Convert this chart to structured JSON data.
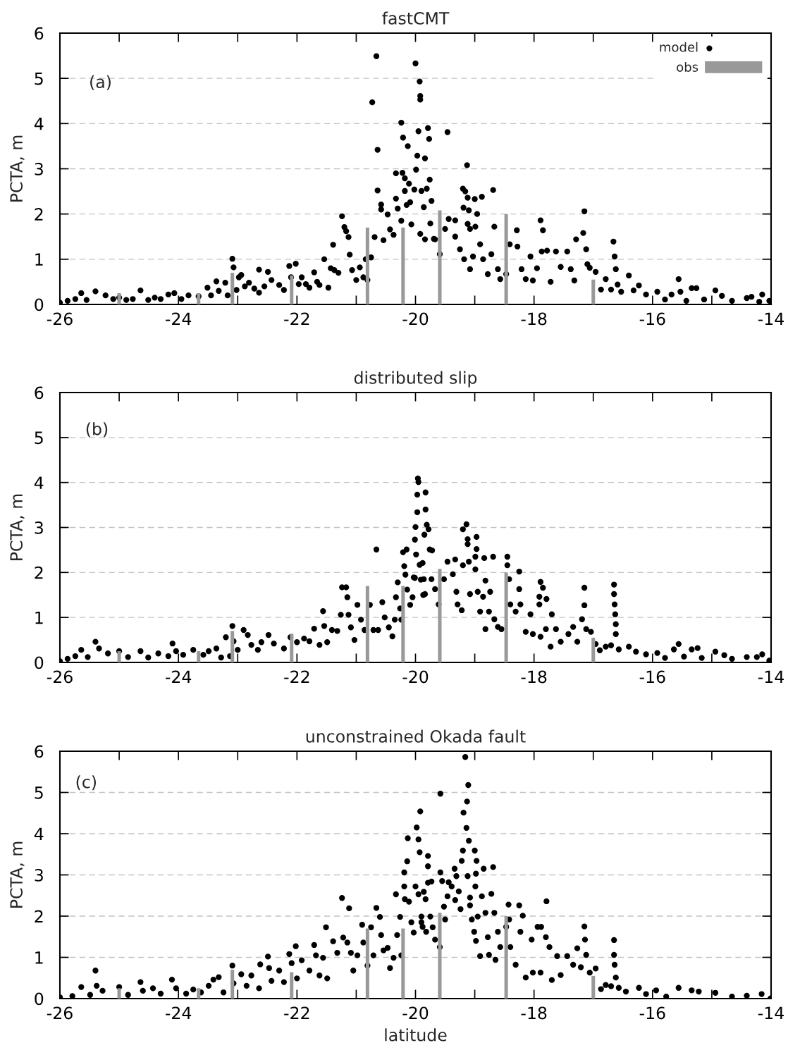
{
  "chart_data": [
    {
      "type": "scatter",
      "title": "fastCMT",
      "ylabel": "PCTA, m",
      "annotations": [
        "(a)"
      ],
      "xlim": [
        -26,
        -14
      ],
      "xticks": [
        -26,
        {
          "value": -25,
          "label": null
        },
        -24,
        {
          "value": -23,
          "label": null
        },
        -22,
        {
          "value": -21,
          "label": null
        },
        -20,
        {
          "value": -19,
          "label": null
        },
        -18,
        {
          "value": -17,
          "label": null
        },
        -16,
        {
          "value": -15,
          "label": null
        },
        -14
      ],
      "ylim": [
        0,
        6
      ],
      "yticks": [
        0,
        1,
        2,
        3,
        4,
        5,
        6
      ],
      "grid": "y",
      "legend": "top right",
      "marker": "circle",
      "series": [
        {
          "name": "model",
          "color": "#000000",
          "x": [
            -26.0,
            -25.87,
            -25.74,
            -25.64,
            -25.55,
            -25.4,
            -25.23,
            -25.1,
            -25.0,
            -24.88,
            -24.77,
            -24.64,
            -24.51,
            -24.4,
            -24.3,
            -24.17,
            -24.07,
            -23.95,
            -23.83,
            -23.66,
            -23.51,
            -23.45,
            -23.36,
            -23.32,
            -23.21,
            -23.17,
            -23.09,
            -23.07,
            -23.02,
            -22.98,
            -22.94,
            -22.88,
            -22.81,
            -22.72,
            -22.64,
            -22.64,
            -22.55,
            -22.49,
            -22.43,
            -22.3,
            -22.22,
            -22.13,
            -22.1,
            -22.02,
            -21.97,
            -21.92,
            -21.85,
            -21.79,
            -21.71,
            -21.66,
            -21.62,
            -21.54,
            -21.47,
            -21.43,
            -21.39,
            -21.37,
            -21.3,
            -21.24,
            -21.2,
            -21.17,
            -21.13,
            -21.11,
            -21.07,
            -21.0,
            -20.94,
            -20.88,
            -20.84,
            -20.81,
            -20.75,
            -20.73,
            -20.69,
            -20.66,
            -20.64,
            -20.64,
            -20.58,
            -20.58,
            -20.54,
            -20.47,
            -20.43,
            -20.37,
            -20.33,
            -20.33,
            -20.3,
            -20.24,
            -20.24,
            -20.22,
            -20.21,
            -20.18,
            -20.18,
            -20.15,
            -20.13,
            -20.11,
            -20.09,
            -20.07,
            -20.02,
            -20.0,
            -19.99,
            -19.97,
            -19.95,
            -19.93,
            -19.92,
            -19.92,
            -19.9,
            -19.86,
            -19.84,
            -19.81,
            -19.79,
            -19.77,
            -19.76,
            -19.73,
            -19.75,
            -19.69,
            -19.92,
            -19.84,
            -19.67,
            -19.59,
            -19.5,
            -19.46,
            -19.44,
            -19.33,
            -19.33,
            -19.25,
            -19.18,
            -19.2,
            -19.16,
            -19.13,
            -19.12,
            -19.19,
            -19.1,
            -19.12,
            -19.08,
            -19.08,
            -19.03,
            -19.0,
            -18.96,
            -18.99,
            -18.91,
            -18.88,
            -18.86,
            -18.78,
            -18.72,
            -18.69,
            -18.67,
            -18.61,
            -18.57,
            -18.47,
            -18.41,
            -18.29,
            -18.28,
            -18.21,
            -18.14,
            -18.06,
            -18.02,
            -17.95,
            -17.89,
            -17.85,
            -17.87,
            -17.78,
            -17.72,
            -17.63,
            -17.55,
            -17.44,
            -17.38,
            -17.32,
            -17.29,
            -17.17,
            -17.15,
            -17.12,
            -17.1,
            -17.06,
            -16.96,
            -16.87,
            -16.79,
            -16.7,
            -16.66,
            -16.64,
            -16.62,
            -16.59,
            -16.53,
            -16.4,
            -16.32,
            -16.23,
            -16.11,
            -15.92,
            -15.79,
            -15.68,
            -15.56,
            -15.53,
            -15.43,
            -15.34,
            -15.26,
            -15.13,
            -14.94,
            -14.83,
            -14.66,
            -14.41,
            -14.33,
            -14.2,
            -14.15,
            -14.03
          ],
          "values": [
            0.04,
            0.08,
            0.12,
            0.25,
            0.1,
            0.29,
            0.2,
            0.12,
            0.15,
            0.1,
            0.12,
            0.31,
            0.1,
            0.15,
            0.12,
            0.22,
            0.25,
            0.12,
            0.2,
            0.18,
            0.37,
            0.2,
            0.51,
            0.3,
            0.48,
            0.2,
            1.01,
            0.82,
            0.32,
            0.6,
            0.65,
            0.4,
            0.48,
            0.35,
            0.77,
            0.26,
            0.4,
            0.72,
            0.54,
            0.43,
            0.32,
            0.85,
            0.6,
            0.9,
            0.45,
            0.6,
            0.45,
            0.37,
            0.71,
            0.5,
            0.43,
            1.0,
            0.37,
            0.8,
            1.32,
            0.76,
            0.7,
            1.95,
            1.71,
            1.62,
            1.49,
            1.1,
            0.76,
            0.54,
            0.82,
            0.6,
            1.0,
            0.54,
            1.04,
            4.47,
            1.49,
            5.49,
            3.42,
            2.52,
            2.21,
            2.1,
            1.42,
            1.99,
            1.66,
            1.54,
            2.34,
            2.9,
            2.12,
            1.85,
            4.02,
            2.91,
            3.69,
            2.79,
            2.51,
            2.2,
            3.5,
            2.67,
            2.26,
            1.77,
            2.54,
            5.33,
            2.98,
            3.29,
            3.83,
            4.93,
            4.61,
            4.53,
            2.51,
            2.15,
            3.23,
            2.56,
            3.9,
            3.66,
            2.76,
            2.29,
            1.79,
            1.45,
            1.56,
            1.44,
            1.44,
            1.11,
            1.67,
            3.81,
            1.89,
            1.86,
            1.5,
            1.22,
            1.0,
            2.56,
            2.5,
            3.08,
            2.36,
            2.14,
            2.08,
            1.78,
            1.67,
            0.78,
            1.06,
            2.33,
            2.0,
            1.72,
            1.33,
            2.38,
            1.0,
            0.67,
            1.11,
            2.53,
            1.72,
            0.78,
            0.56,
            0.67,
            1.33,
            1.64,
            1.28,
            0.78,
            0.56,
            1.06,
            0.53,
            0.8,
            1.86,
            1.64,
            1.17,
            1.19,
            0.5,
            1.17,
            0.83,
            1.17,
            0.78,
            0.53,
            1.44,
            1.58,
            2.06,
            1.22,
            0.89,
            0.81,
            0.72,
            0.33,
            0.56,
            0.33,
            1.39,
            1.06,
            0.78,
            0.44,
            0.28,
            0.64,
            0.31,
            0.42,
            0.22,
            0.28,
            0.11,
            0.22,
            0.56,
            0.28,
            0.08,
            0.36,
            0.36,
            0.11,
            0.31,
            0.19,
            0.08,
            0.14,
            0.17,
            0.06,
            0.22,
            0.08
          ]
        },
        {
          "name": "obs",
          "type": "bar",
          "color": "#999999",
          "x": [
            -25.0,
            -23.66,
            -23.09,
            -22.09,
            -20.81,
            -20.21,
            -19.59,
            -18.47,
            -17.0
          ],
          "values": [
            0.25,
            0.25,
            0.7,
            0.64,
            1.7,
            1.7,
            2.08,
            2.0,
            0.55
          ]
        }
      ]
    },
    {
      "type": "scatter",
      "title": "distributed slip",
      "ylabel": "PCTA, m",
      "annotations": [
        "(b)"
      ],
      "xlim": [
        -26,
        -14
      ],
      "xticks": [
        -26,
        {
          "value": -25,
          "label": null
        },
        -24,
        {
          "value": -23,
          "label": null
        },
        -22,
        {
          "value": -21,
          "label": null
        },
        -20,
        {
          "value": -19,
          "label": null
        },
        -18,
        {
          "value": -17,
          "label": null
        },
        -16,
        {
          "value": -15,
          "label": null
        },
        -14
      ],
      "ylim": [
        0,
        6
      ],
      "yticks": [
        0,
        1,
        2,
        3,
        4,
        5,
        6
      ],
      "grid": "y",
      "marker": "circle",
      "series": [
        {
          "color": "#000000",
          "x": [
            -26.0,
            -25.87,
            -25.74,
            -25.64,
            -25.53,
            -25.4,
            -25.34,
            -25.19,
            -25.0,
            -24.85,
            -24.64,
            -24.51,
            -24.34,
            -24.17,
            -24.1,
            -24.04,
            -23.92,
            -23.75,
            -23.58,
            -23.49,
            -23.36,
            -23.28,
            -23.2,
            -23.13,
            -23.09,
            -23.07,
            -23.0,
            -22.9,
            -22.83,
            -22.77,
            -22.66,
            -22.6,
            -22.48,
            -22.39,
            -22.22,
            -22.11,
            -22.0,
            -21.88,
            -21.79,
            -21.71,
            -21.62,
            -21.56,
            -21.54,
            -21.49,
            -21.41,
            -21.32,
            -21.26,
            -21.24,
            -21.17,
            -21.15,
            -21.13,
            -21.09,
            -21.03,
            -20.98,
            -20.92,
            -20.86,
            -20.77,
            -20.71,
            -20.66,
            -20.63,
            -20.56,
            -20.52,
            -20.45,
            -20.39,
            -20.35,
            -20.33,
            -20.3,
            -20.26,
            -20.24,
            -20.21,
            -20.19,
            -20.17,
            -20.15,
            -20.14,
            -20.09,
            -20.05,
            -20.03,
            -20.01,
            -20.0,
            -19.99,
            -19.97,
            -19.97,
            -19.96,
            -19.95,
            -19.93,
            -19.91,
            -19.87,
            -19.83,
            -19.83,
            -19.81,
            -19.85,
            -19.76,
            -19.78,
            -19.72,
            -19.88,
            -20.01,
            -19.86,
            -19.84,
            -19.73,
            -19.67,
            -19.61,
            -19.52,
            -19.46,
            -19.37,
            -19.33,
            -19.31,
            -19.29,
            -19.22,
            -19.2,
            -19.2,
            -19.14,
            -19.12,
            -19.12,
            -19.1,
            -19.08,
            -18.99,
            -18.97,
            -18.97,
            -18.99,
            -18.95,
            -18.91,
            -18.86,
            -18.84,
            -18.82,
            -18.82,
            -18.76,
            -18.74,
            -18.69,
            -18.67,
            -18.61,
            -18.55,
            -18.45,
            -18.45,
            -18.42,
            -18.4,
            -18.31,
            -18.25,
            -18.25,
            -18.23,
            -18.14,
            -18.06,
            -18.02,
            -17.91,
            -17.89,
            -17.85,
            -17.79,
            -17.91,
            -17.89,
            -17.8,
            -17.72,
            -17.7,
            -17.63,
            -17.55,
            -17.42,
            -17.34,
            -17.27,
            -17.19,
            -17.15,
            -17.15,
            -17.12,
            -17.04,
            -16.96,
            -16.89,
            -16.79,
            -16.7,
            -16.65,
            -16.65,
            -16.64,
            -16.63,
            -16.62,
            -16.62,
            -16.57,
            -16.4,
            -16.28,
            -16.11,
            -15.92,
            -15.79,
            -15.64,
            -15.56,
            -15.47,
            -15.34,
            -15.24,
            -15.17,
            -14.94,
            -14.79,
            -14.66,
            -14.41,
            -14.24,
            -14.15,
            -14.03
          ],
          "values": [
            0.03,
            0.08,
            0.14,
            0.28,
            0.12,
            0.46,
            0.31,
            0.2,
            0.25,
            0.12,
            0.25,
            0.11,
            0.2,
            0.14,
            0.42,
            0.25,
            0.17,
            0.28,
            0.17,
            0.25,
            0.31,
            0.11,
            0.56,
            0.14,
            0.81,
            0.47,
            0.28,
            0.72,
            0.61,
            0.39,
            0.28,
            0.45,
            0.61,
            0.42,
            0.31,
            0.56,
            0.45,
            0.53,
            0.47,
            0.75,
            0.39,
            1.14,
            0.81,
            0.45,
            0.72,
            0.7,
            1.06,
            1.67,
            1.67,
            1.45,
            1.06,
            0.78,
            0.5,
            1.28,
            0.95,
            0.72,
            1.28,
            0.72,
            2.51,
            0.72,
            1.34,
            1.0,
            0.78,
            0.58,
            0.95,
            1.45,
            1.78,
            1.2,
            0.95,
            2.45,
            2.14,
            1.95,
            2.51,
            1.62,
            1.28,
            1.45,
            1.89,
            2.73,
            3.01,
            2.4,
            3.34,
            3.73,
            4.09,
            4.01,
            2.17,
            1.84,
            1.5,
            3.78,
            3.4,
            3.06,
            2.84,
            2.51,
            2.96,
            2.49,
            2.21,
            1.88,
            1.85,
            1.52,
            1.85,
            1.63,
            1.29,
            1.85,
            2.24,
            1.96,
            2.29,
            1.57,
            1.29,
            1.16,
            2.16,
            2.96,
            3.07,
            2.74,
            2.63,
            2.24,
            1.52,
            2.35,
            2.79,
            2.52,
            2.07,
            1.57,
            1.13,
            1.46,
            2.32,
            1.82,
            0.74,
            1.13,
            1.57,
            2.35,
            0.96,
            0.79,
            0.74,
            2.35,
            2.16,
            1.85,
            1.29,
            1.13,
            2.02,
            1.63,
            1.29,
            0.68,
            1.07,
            0.63,
            1.46,
            1.79,
            1.66,
            1.41,
            1.29,
            0.57,
            0.74,
            0.35,
            1.07,
            0.74,
            0.46,
            0.63,
            0.79,
            0.46,
            0.96,
            1.27,
            1.66,
            0.74,
            0.68,
            0.41,
            0.27,
            0.35,
            0.38,
            1.73,
            1.52,
            1.29,
            1.07,
            0.85,
            0.63,
            0.29,
            0.35,
            0.24,
            0.18,
            0.21,
            0.1,
            0.29,
            0.41,
            0.13,
            0.29,
            0.32,
            0.1,
            0.24,
            0.16,
            0.08,
            0.12,
            0.12,
            0.18,
            0.04
          ]
        },
        {
          "type": "bar",
          "color": "#999999",
          "x": [
            -25.0,
            -23.66,
            -23.09,
            -22.09,
            -20.81,
            -20.21,
            -19.59,
            -18.47,
            -17.0
          ],
          "values": [
            0.25,
            0.25,
            0.7,
            0.64,
            1.7,
            1.7,
            2.08,
            2.0,
            0.55
          ]
        }
      ]
    },
    {
      "type": "scatter",
      "title": "unconstrained Okada fault",
      "xlabel": "latitude",
      "ylabel": "PCTA, m",
      "annotations": [
        "(c)"
      ],
      "xlim": [
        -26,
        -14
      ],
      "xticks": [
        -26,
        {
          "value": -25,
          "label": null
        },
        -24,
        {
          "value": -23,
          "label": null
        },
        -22,
        {
          "value": -21,
          "label": null
        },
        -20,
        {
          "value": -19,
          "label": null
        },
        -18,
        {
          "value": -17,
          "label": null
        },
        -16,
        {
          "value": -15,
          "label": null
        },
        -14
      ],
      "ylim": [
        0,
        6
      ],
      "yticks": [
        0,
        1,
        2,
        3,
        4,
        5,
        6
      ],
      "grid": "y",
      "marker": "circle",
      "series": [
        {
          "color": "#000000",
          "x": [
            -26.0,
            -25.79,
            -25.64,
            -25.49,
            -25.4,
            -25.38,
            -25.28,
            -25.0,
            -24.85,
            -24.64,
            -24.6,
            -24.43,
            -24.3,
            -24.11,
            -24.04,
            -23.87,
            -23.75,
            -23.62,
            -23.49,
            -23.41,
            -23.32,
            -23.24,
            -23.09,
            -23.07,
            -22.94,
            -22.85,
            -22.77,
            -22.64,
            -22.62,
            -22.49,
            -22.47,
            -22.43,
            -22.3,
            -22.22,
            -22.13,
            -22.09,
            -22.02,
            -22.0,
            -21.92,
            -21.79,
            -21.71,
            -21.68,
            -21.62,
            -21.56,
            -21.51,
            -21.49,
            -21.39,
            -21.32,
            -21.24,
            -21.22,
            -21.15,
            -21.12,
            -21.09,
            -21.05,
            -20.98,
            -20.9,
            -20.88,
            -20.81,
            -20.75,
            -20.71,
            -20.66,
            -20.6,
            -20.58,
            -20.54,
            -20.47,
            -20.43,
            -20.37,
            -20.33,
            -20.31,
            -20.26,
            -20.24,
            -20.19,
            -20.19,
            -20.18,
            -20.14,
            -20.13,
            -20.11,
            -20.07,
            -20.03,
            -20.0,
            -19.98,
            -19.95,
            -19.93,
            -19.92,
            -19.95,
            -19.9,
            -19.86,
            -19.83,
            -19.79,
            -19.79,
            -19.79,
            -19.73,
            -19.71,
            -19.9,
            -19.88,
            -19.82,
            -19.75,
            -19.67,
            -19.59,
            -19.58,
            -19.58,
            -19.55,
            -19.52,
            -19.5,
            -19.44,
            -19.46,
            -19.39,
            -19.34,
            -19.31,
            -19.33,
            -19.27,
            -19.24,
            -19.22,
            -19.2,
            -19.19,
            -19.16,
            -19.14,
            -19.13,
            -19.11,
            -19.12,
            -19.1,
            -19.08,
            -19.08,
            -19.05,
            -19.01,
            -19.0,
            -18.98,
            -18.97,
            -18.99,
            -18.95,
            -18.98,
            -18.91,
            -18.88,
            -18.85,
            -18.82,
            -18.78,
            -18.76,
            -18.72,
            -18.69,
            -18.67,
            -18.65,
            -18.61,
            -18.57,
            -18.47,
            -18.43,
            -18.42,
            -18.4,
            -18.31,
            -18.25,
            -18.23,
            -18.19,
            -18.14,
            -18.04,
            -18.02,
            -17.94,
            -17.88,
            -17.89,
            -17.8,
            -17.79,
            -17.74,
            -17.7,
            -17.61,
            -17.55,
            -17.44,
            -17.34,
            -17.27,
            -17.21,
            -17.15,
            -17.14,
            -17.12,
            -17.06,
            -16.96,
            -16.87,
            -16.79,
            -16.7,
            -16.65,
            -16.65,
            -16.64,
            -16.62,
            -16.57,
            -16.45,
            -16.23,
            -16.11,
            -15.94,
            -15.77,
            -15.56,
            -15.34,
            -15.22,
            -14.94,
            -14.66,
            -14.41,
            -14.16,
            -14.01
          ],
          "values": [
            0.03,
            0.06,
            0.28,
            0.09,
            0.68,
            0.31,
            0.19,
            0.28,
            0.09,
            0.4,
            0.19,
            0.25,
            0.12,
            0.46,
            0.25,
            0.12,
            0.22,
            0.15,
            0.31,
            0.46,
            0.52,
            0.15,
            0.8,
            0.37,
            0.59,
            0.31,
            0.56,
            0.25,
            0.83,
            1.02,
            0.74,
            0.43,
            0.68,
            0.4,
            1.08,
            0.86,
            1.27,
            0.49,
            0.93,
            0.68,
            1.3,
            1.05,
            0.56,
            0.99,
            1.73,
            0.49,
            1.39,
            1.11,
            2.44,
            1.48,
            1.36,
            2.19,
            1.11,
            0.68,
            1.05,
            1.79,
            1.36,
            0.8,
            1.73,
            1.05,
            2.2,
            1.98,
            1.54,
            1.17,
            1.23,
            0.74,
            0.99,
            2.53,
            1.54,
            1.98,
            1.05,
            3.06,
            2.72,
            2.41,
            3.33,
            3.89,
            2.35,
            1.85,
            1.6,
            2.72,
            4.15,
            3.86,
            3.55,
            4.54,
            2.53,
            1.85,
            2.59,
            2.41,
            3.46,
            3.21,
            2.81,
            2.84,
            1.73,
            1.99,
            1.74,
            1.62,
            1.99,
            1.43,
            1.25,
            3.06,
            4.97,
            2.85,
            2.23,
            1.92,
            2.82,
            2.48,
            2.72,
            3.15,
            2.97,
            2.39,
            2.6,
            2.17,
            3.34,
            3.59,
            4.51,
            5.86,
            4.14,
            4.78,
            5.18,
            2.97,
            3.83,
            2.45,
            2.26,
            1.92,
            1.62,
            3.59,
            3.03,
            3.34,
            2.72,
            1.99,
            1.4,
            1.03,
            2.48,
            3.15,
            2.08,
            1.49,
            1.06,
            2.54,
            3.19,
            2.08,
            0.94,
            1.62,
            1.25,
            1.74,
            2.28,
            1.92,
            1.25,
            0.82,
            2.26,
            1.62,
            2.01,
            0.51,
            1.43,
            0.63,
            1.74,
            1.74,
            0.63,
            1.49,
            2.36,
            1.25,
            0.45,
            1.03,
            0.57,
            1.03,
            0.82,
            1.22,
            0.76,
            1.75,
            1.43,
            1.06,
            0.63,
            0.73,
            0.23,
            0.33,
            0.3,
            1.42,
            1.06,
            0.82,
            0.51,
            0.26,
            0.17,
            0.26,
            0.11,
            0.2,
            0.05,
            0.26,
            0.2,
            0.17,
            0.14,
            0.05,
            0.07,
            0.11,
            0.0
          ]
        },
        {
          "type": "bar",
          "color": "#999999",
          "x": [
            -25.0,
            -23.66,
            -23.09,
            -22.09,
            -20.81,
            -20.21,
            -19.59,
            -18.47,
            -17.0
          ],
          "values": [
            0.25,
            0.25,
            0.7,
            0.64,
            1.7,
            1.7,
            2.08,
            2.0,
            0.55
          ]
        }
      ]
    }
  ]
}
